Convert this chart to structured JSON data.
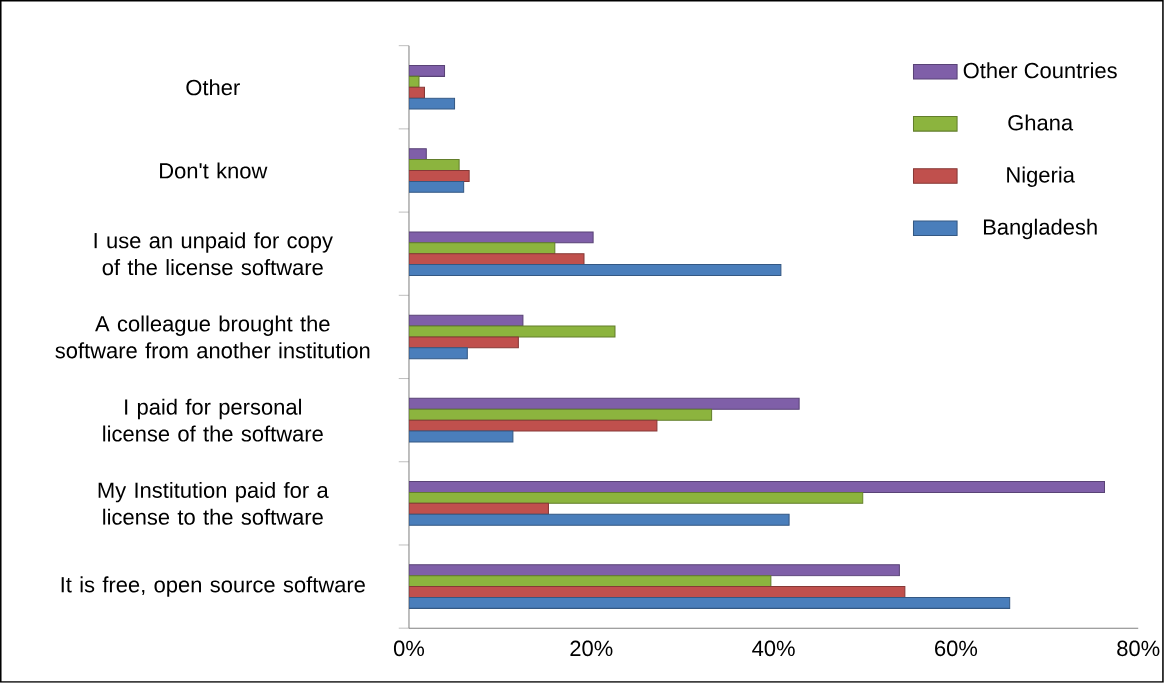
{
  "chart_data": {
    "type": "bar",
    "orientation": "horizontal",
    "categories": [
      "Other",
      "Don't know",
      "I use an unpaid for copy of the license software",
      "A colleague brought the software from another institution",
      "I paid for personal license of the software",
      "My Institution paid for a license to the software",
      "It is free, open source software"
    ],
    "series": [
      {
        "name": "Other Countries",
        "color": "#7f5fa8",
        "values": [
          3.9,
          1.9,
          20.2,
          12.5,
          42.8,
          76.3,
          53.8
        ]
      },
      {
        "name": "Ghana",
        "color": "#8cb43e",
        "values": [
          1.1,
          5.5,
          16.0,
          22.6,
          33.2,
          49.8,
          39.7
        ]
      },
      {
        "name": "Nigeria",
        "color": "#c0504d",
        "values": [
          1.7,
          6.6,
          19.2,
          12.0,
          27.2,
          15.3,
          54.4
        ]
      },
      {
        "name": "Bangladesh",
        "color": "#4a7ebb",
        "values": [
          5.0,
          6.0,
          40.8,
          6.4,
          11.4,
          41.7,
          65.9
        ]
      }
    ],
    "xlim": [
      0,
      80
    ],
    "xticks": [
      {
        "value": 0,
        "label": "0%"
      },
      {
        "value": 20,
        "label": "20%"
      },
      {
        "value": 40,
        "label": "40%"
      },
      {
        "value": 60,
        "label": "60%"
      },
      {
        "value": 80,
        "label": "80%"
      }
    ],
    "legend": "top right",
    "grid": false
  }
}
